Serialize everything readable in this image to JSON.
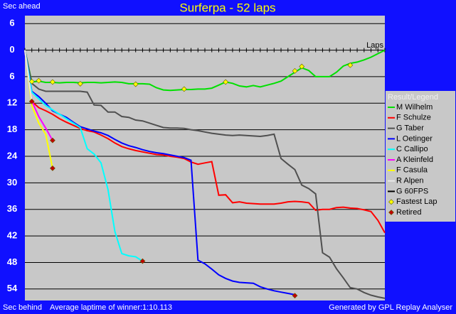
{
  "chart_data": {
    "type": "line",
    "title": "Surferpa - 52 laps",
    "y_label_top": "Sec ahead",
    "y_label_bottom": "Sec behind",
    "x_label": "Laps",
    "footnote": "Average laptime of winner:1:10.113",
    "credit": "Generated by GPL Replay Analyser",
    "legend_title": "Result/Legend",
    "legend": "right",
    "grid": true,
    "xlim": [
      0,
      52
    ],
    "ylim": [
      -56.6,
      7.8
    ],
    "yticks": [
      6,
      0,
      {
        "value": -6,
        "label": "6"
      },
      {
        "value": -12,
        "label": "12"
      },
      {
        "value": -18,
        "label": "18"
      },
      {
        "value": -24,
        "label": "24"
      },
      {
        "value": -30,
        "label": "30"
      },
      {
        "value": -36,
        "label": "36"
      },
      {
        "value": -42,
        "label": "42"
      },
      {
        "value": -48,
        "label": "48"
      },
      {
        "value": -54,
        "label": "54"
      }
    ],
    "x": [
      0,
      1,
      2,
      3,
      4,
      5,
      6,
      7,
      8,
      9,
      10,
      11,
      12,
      13,
      14,
      15,
      16,
      17,
      18,
      19,
      20,
      21,
      22,
      23,
      24,
      25,
      26,
      27,
      28,
      29,
      30,
      31,
      32,
      33,
      34,
      35,
      36,
      37,
      38,
      39,
      40,
      41,
      42,
      43,
      44,
      45,
      46,
      47,
      48,
      49,
      50,
      51,
      52
    ],
    "series": [
      {
        "name": "M Wilhelm",
        "color": "#00e000",
        "values": [
          0,
          -7.2,
          -7,
          -7.3,
          -7.3,
          -7.4,
          -7.3,
          -7.3,
          -7.4,
          -7.3,
          -7.3,
          -7.4,
          -7.3,
          -7.2,
          -7.3,
          -7.6,
          -7.6,
          -7.6,
          -7.7,
          -8.5,
          -9,
          -9.1,
          -9,
          -8.9,
          -8.9,
          -8.8,
          -8.8,
          -8.6,
          -7.9,
          -7.2,
          -7.5,
          -8.1,
          -8.3,
          -8,
          -8.3,
          -7.9,
          -7.5,
          -7,
          -6,
          -5,
          -4,
          -4.6,
          -6,
          -6,
          -6,
          -5,
          -3.6,
          -3,
          -2.7,
          -2.2,
          -1.6,
          -0.8,
          0
        ]
      },
      {
        "name": "F Schulze",
        "color": "#ff0000",
        "values": [
          0,
          -11.6,
          -13,
          -13.7,
          -14.5,
          -15.5,
          -16.3,
          -17,
          -17.7,
          -18.2,
          -18.5,
          -19.2,
          -20,
          -21,
          -21.8,
          -22.3,
          -22.7,
          -23,
          -23.3,
          -23.6,
          -23.7,
          -24,
          -24.2,
          -24.5,
          -25.3,
          -25.8,
          -25.5,
          -25.2,
          -32.8,
          -32.7,
          -34.5,
          -34.3,
          -34.6,
          -34.7,
          -34.8,
          -34.8,
          -34.8,
          -34.6,
          -34.3,
          -34.2,
          -34.3,
          -34.5,
          -36.2,
          -36,
          -36,
          -35.6,
          -35.5,
          -35.7,
          -35.8,
          -36.1,
          -36.5,
          -38.5,
          -41.3
        ]
      },
      {
        "name": "G Taber",
        "color": "#505050",
        "values": [
          0,
          -7.5,
          -8.8,
          -9.3,
          -9.3,
          -9.3,
          -9.3,
          -9.3,
          -9.3,
          -9.5,
          -12.4,
          -12.5,
          -14,
          -14,
          -15,
          -15.2,
          -15.8,
          -16,
          -16.5,
          -17,
          -17.5,
          -17.6,
          -17.6,
          -17.7,
          -18,
          -18.2,
          -18.5,
          -18.8,
          -19,
          -19.2,
          -19.3,
          -19.2,
          -19.3,
          -19.4,
          -19.5,
          -19.3,
          -19,
          -24.5,
          -25.8,
          -27,
          -30.5,
          -31.3,
          -32.5,
          -45.8,
          -46.8,
          -49.4,
          -51.5,
          -53.7,
          -54,
          -54.8,
          -55.4,
          -55.8,
          -56.1
        ]
      },
      {
        "name": "L Oetinger",
        "color": "#0000ff",
        "values": [
          0,
          -9.3,
          -10.5,
          -12,
          -13.7,
          -14.5,
          -15.2,
          -16.3,
          -17.3,
          -17.8,
          -18.3,
          -18.7,
          -19.3,
          -20.2,
          -21,
          -21.6,
          -22,
          -22.5,
          -22.9,
          -23.2,
          -23.4,
          -23.7,
          -24,
          -24.3,
          -24.9,
          -47.5,
          -48.3,
          -49.5,
          -50.8,
          -51.6,
          -52.2,
          -52.5,
          -52.6,
          -52.7,
          -53.5,
          -54,
          -54.4,
          -54.7,
          -55,
          -55.3,
          null,
          null,
          null,
          null,
          null,
          null,
          null,
          null,
          null,
          null,
          null,
          null,
          null
        ]
      },
      {
        "name": "C Callipo",
        "color": "#00ffff",
        "values": [
          0,
          -9.5,
          -11,
          -12.5,
          -13.5,
          -14.5,
          -15.5,
          -16.5,
          -17.5,
          -22.3,
          -23.5,
          -25.5,
          -31.5,
          -41,
          -46,
          -46.5,
          -46.7,
          -47.7,
          null,
          null,
          null,
          null,
          null,
          null,
          null,
          null,
          null,
          null,
          null,
          null,
          null,
          null,
          null,
          null,
          null,
          null,
          null,
          null,
          null,
          null,
          null,
          null,
          null,
          null,
          null,
          null,
          null,
          null,
          null,
          null,
          null,
          null,
          null
        ]
      },
      {
        "name": "A Kleinfeld",
        "color": "#ff00ff",
        "values": [
          0,
          -11.5,
          -15,
          -17.6,
          -20.4,
          null,
          null,
          null,
          null,
          null,
          null,
          null,
          null,
          null,
          null,
          null,
          null,
          null,
          null,
          null,
          null,
          null,
          null,
          null,
          null,
          null,
          null,
          null,
          null,
          null,
          null,
          null,
          null,
          null,
          null,
          null,
          null,
          null,
          null,
          null,
          null,
          null,
          null,
          null,
          null,
          null,
          null,
          null,
          null,
          null,
          null,
          null,
          null
        ]
      },
      {
        "name": "F Casula",
        "color": "#ffff00",
        "values": [
          0,
          -12.5,
          -16.5,
          -19,
          -26.7,
          null,
          null,
          null,
          null,
          null,
          null,
          null,
          null,
          null,
          null,
          null,
          null,
          null,
          null,
          null,
          null,
          null,
          null,
          null,
          null,
          null,
          null,
          null,
          null,
          null,
          null,
          null,
          null,
          null,
          null,
          null,
          null,
          null,
          null,
          null,
          null,
          null,
          null,
          null,
          null,
          null,
          null,
          null,
          null,
          null,
          null,
          null,
          null
        ]
      },
      {
        "name": "R Alpen",
        "color": "#e8e8e8",
        "values": [
          0,
          -11.6,
          null,
          null,
          null,
          null,
          null,
          null,
          null,
          null,
          null,
          null,
          null,
          null,
          null,
          null,
          null,
          null,
          null,
          null,
          null,
          null,
          null,
          null,
          null,
          null,
          null,
          null,
          null,
          null,
          null,
          null,
          null,
          null,
          null,
          null,
          null,
          null,
          null,
          null,
          null,
          null,
          null,
          null,
          null,
          null,
          null,
          null,
          null,
          null,
          null,
          null,
          null
        ]
      },
      {
        "name": "G 60FPS",
        "color": "#000000",
        "values": [
          null,
          null,
          null,
          null,
          null,
          null,
          null,
          null,
          null,
          null,
          null,
          null,
          null,
          null,
          null,
          null,
          null,
          null,
          null,
          null,
          null,
          null,
          null,
          null,
          null,
          null,
          null,
          null,
          null,
          null,
          null,
          null,
          null,
          null,
          null,
          null,
          null,
          null,
          null,
          null,
          null,
          null,
          null,
          null,
          null,
          null,
          null,
          null,
          null,
          null,
          null,
          null,
          null
        ]
      },
      {
        "name": "Fastest Lap",
        "color": "#ffff00",
        "marker": "diamond",
        "x": [
          1,
          2,
          4,
          8,
          16,
          23,
          29,
          39,
          40,
          47
        ],
        "values": [
          -7.1,
          -6.9,
          -7.2,
          -7.6,
          -7.7,
          -8.8,
          -7.2,
          -4.7,
          -3.7,
          -3.4
        ]
      },
      {
        "name": "Retired",
        "color": "#c00000",
        "marker": "diamond",
        "x": [
          1,
          4,
          4,
          17,
          39
        ],
        "values": [
          -11.6,
          -20.4,
          -26.7,
          -47.7,
          -55.5
        ]
      }
    ]
  }
}
